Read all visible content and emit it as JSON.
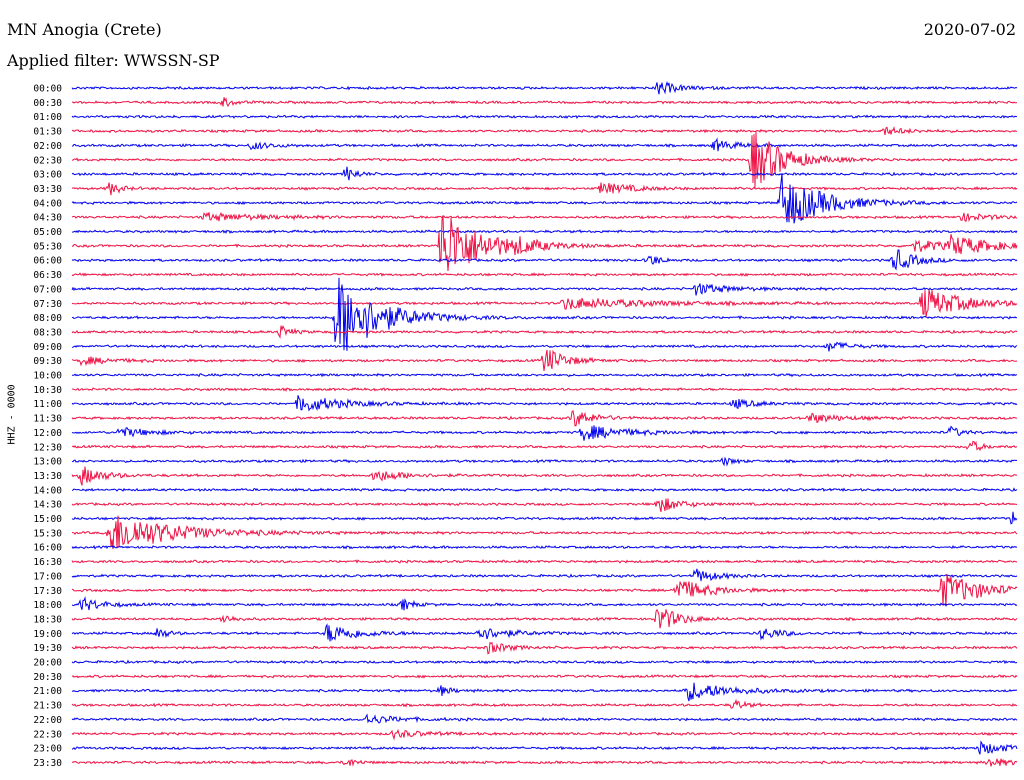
{
  "header": {
    "station": "MN Anogia (Crete)",
    "date": "2020-07-02",
    "filter_label": "Applied filter: WWSSN-SP"
  },
  "chart_data": {
    "type": "line",
    "title": "MN Anogia (Crete)",
    "channel_label": "HHZ - 0000",
    "row_labels": [
      "00:00",
      "00:30",
      "01:00",
      "01:30",
      "02:00",
      "02:30",
      "03:00",
      "03:30",
      "04:00",
      "04:30",
      "05:00",
      "05:30",
      "06:00",
      "06:30",
      "07:00",
      "07:30",
      "08:00",
      "08:30",
      "09:00",
      "09:30",
      "10:00",
      "10:30",
      "11:00",
      "11:30",
      "12:00",
      "12:30",
      "13:00",
      "13:30",
      "14:00",
      "14:30",
      "15:00",
      "15:30",
      "16:00",
      "16:30",
      "17:00",
      "17:30",
      "18:00",
      "18:30",
      "19:00",
      "19:30",
      "20:00",
      "20:30",
      "21:00",
      "21:30",
      "22:00",
      "22:30",
      "23:00",
      "23:30"
    ],
    "colors": [
      "#0000ee",
      "#ee1144"
    ],
    "baseline_noise": 1.0,
    "events": [
      {
        "row": 0,
        "t": 0.62,
        "amp": 7,
        "dur": 0.02
      },
      {
        "row": 1,
        "t": 0.16,
        "amp": 5,
        "dur": 0.01
      },
      {
        "row": 3,
        "t": 0.86,
        "amp": 4,
        "dur": 0.02
      },
      {
        "row": 4,
        "t": 0.19,
        "amp": 4,
        "dur": 0.02
      },
      {
        "row": 4,
        "t": 0.68,
        "amp": 6,
        "dur": 0.02
      },
      {
        "row": 5,
        "t": 0.72,
        "amp": 32,
        "dur": 0.03
      },
      {
        "row": 6,
        "t": 0.29,
        "amp": 8,
        "dur": 0.01
      },
      {
        "row": 7,
        "t": 0.04,
        "amp": 7,
        "dur": 0.01
      },
      {
        "row": 7,
        "t": 0.56,
        "amp": 6,
        "dur": 0.03
      },
      {
        "row": 8,
        "t": 0.75,
        "amp": 30,
        "dur": 0.04
      },
      {
        "row": 9,
        "t": 0.14,
        "amp": 4,
        "dur": 0.06
      },
      {
        "row": 9,
        "t": 0.94,
        "amp": 4,
        "dur": 0.03
      },
      {
        "row": 11,
        "t": 0.39,
        "amp": 40,
        "dur": 0.04
      },
      {
        "row": 11,
        "t": 0.47,
        "amp": 5,
        "dur": 0.02
      },
      {
        "row": 11,
        "t": 0.89,
        "amp": 6,
        "dur": 0.04
      },
      {
        "row": 11,
        "t": 0.93,
        "amp": 9,
        "dur": 0.04
      },
      {
        "row": 12,
        "t": 0.61,
        "amp": 7,
        "dur": 0.01
      },
      {
        "row": 12,
        "t": 0.87,
        "amp": 12,
        "dur": 0.02
      },
      {
        "row": 14,
        "t": 0.66,
        "amp": 6,
        "dur": 0.03
      },
      {
        "row": 15,
        "t": 0.52,
        "amp": 6,
        "dur": 0.08
      },
      {
        "row": 15,
        "t": 0.9,
        "amp": 16,
        "dur": 0.04
      },
      {
        "row": 16,
        "t": 0.28,
        "amp": 45,
        "dur": 0.04
      },
      {
        "row": 17,
        "t": 0.22,
        "amp": 7,
        "dur": 0.01
      },
      {
        "row": 18,
        "t": 0.8,
        "amp": 5,
        "dur": 0.02
      },
      {
        "row": 19,
        "t": 0.5,
        "amp": 14,
        "dur": 0.02
      },
      {
        "row": 19,
        "t": 0.01,
        "amp": 4,
        "dur": 0.03
      },
      {
        "row": 22,
        "t": 0.24,
        "amp": 9,
        "dur": 0.04
      },
      {
        "row": 22,
        "t": 0.7,
        "amp": 5,
        "dur": 0.02
      },
      {
        "row": 23,
        "t": 0.53,
        "amp": 9,
        "dur": 0.02
      },
      {
        "row": 23,
        "t": 0.78,
        "amp": 5,
        "dur": 0.03
      },
      {
        "row": 24,
        "t": 0.05,
        "amp": 5,
        "dur": 0.03
      },
      {
        "row": 24,
        "t": 0.54,
        "amp": 8,
        "dur": 0.04
      },
      {
        "row": 24,
        "t": 0.93,
        "amp": 6,
        "dur": 0.01
      },
      {
        "row": 25,
        "t": 0.95,
        "amp": 7,
        "dur": 0.01
      },
      {
        "row": 26,
        "t": 0.69,
        "amp": 4,
        "dur": 0.01
      },
      {
        "row": 27,
        "t": 0.01,
        "amp": 10,
        "dur": 0.02
      },
      {
        "row": 27,
        "t": 0.32,
        "amp": 6,
        "dur": 0.03
      },
      {
        "row": 29,
        "t": 0.62,
        "amp": 9,
        "dur": 0.02
      },
      {
        "row": 30,
        "t": 0.995,
        "amp": 8,
        "dur": 0.005
      },
      {
        "row": 31,
        "t": 0.04,
        "amp": 22,
        "dur": 0.06
      },
      {
        "row": 34,
        "t": 0.66,
        "amp": 7,
        "dur": 0.02
      },
      {
        "row": 35,
        "t": 0.64,
        "amp": 12,
        "dur": 0.03
      },
      {
        "row": 35,
        "t": 0.92,
        "amp": 18,
        "dur": 0.04
      },
      {
        "row": 36,
        "t": 0.01,
        "amp": 7,
        "dur": 0.02
      },
      {
        "row": 36,
        "t": 0.35,
        "amp": 6,
        "dur": 0.01
      },
      {
        "row": 37,
        "t": 0.62,
        "amp": 14,
        "dur": 0.02
      },
      {
        "row": 37,
        "t": 0.16,
        "amp": 5,
        "dur": 0.01
      },
      {
        "row": 38,
        "t": 0.27,
        "amp": 10,
        "dur": 0.03
      },
      {
        "row": 38,
        "t": 0.43,
        "amp": 7,
        "dur": 0.03
      },
      {
        "row": 38,
        "t": 0.73,
        "amp": 6,
        "dur": 0.02
      },
      {
        "row": 38,
        "t": 0.09,
        "amp": 6,
        "dur": 0.01
      },
      {
        "row": 39,
        "t": 0.44,
        "amp": 6,
        "dur": 0.02
      },
      {
        "row": 42,
        "t": 0.65,
        "amp": 10,
        "dur": 0.04
      },
      {
        "row": 42,
        "t": 0.39,
        "amp": 5,
        "dur": 0.01
      },
      {
        "row": 43,
        "t": 0.7,
        "amp": 6,
        "dur": 0.01
      },
      {
        "row": 44,
        "t": 0.31,
        "amp": 5,
        "dur": 0.03
      },
      {
        "row": 45,
        "t": 0.34,
        "amp": 4,
        "dur": 0.03
      },
      {
        "row": 46,
        "t": 0.96,
        "amp": 6,
        "dur": 0.03
      },
      {
        "row": 47,
        "t": 0.29,
        "amp": 5,
        "dur": 0.01
      },
      {
        "row": 47,
        "t": 0.97,
        "amp": 5,
        "dur": 0.02
      }
    ]
  }
}
